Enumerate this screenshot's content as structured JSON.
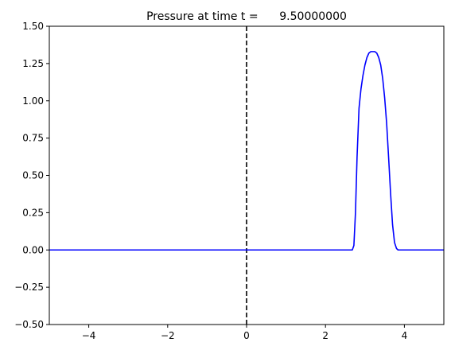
{
  "chart_data": {
    "type": "line",
    "title": "Pressure at time t =      9.50000000",
    "xlabel": "",
    "ylabel": "",
    "xlim": [
      -5,
      5
    ],
    "ylim": [
      -0.5,
      1.5
    ],
    "grid": false,
    "x_ticks": [
      -4,
      -2,
      0,
      2,
      4
    ],
    "x_tick_labels": [
      "−4",
      "−2",
      "0",
      "2",
      "4"
    ],
    "y_ticks": [
      -0.5,
      -0.25,
      0.0,
      0.25,
      0.5,
      0.75,
      1.0,
      1.25,
      1.5
    ],
    "y_tick_labels": [
      "−0.50",
      "−0.25",
      "0.00",
      "0.25",
      "0.50",
      "0.75",
      "1.00",
      "1.25",
      "1.50"
    ],
    "series": [
      {
        "color": "#0000ff",
        "x": [
          -5.0,
          2.68,
          2.72,
          2.76,
          2.8,
          2.85,
          2.9,
          2.95,
          3.0,
          3.05,
          3.1,
          3.15,
          3.2,
          3.25,
          3.3,
          3.35,
          3.4,
          3.45,
          3.5,
          3.55,
          3.6,
          3.65,
          3.7,
          3.75,
          3.8,
          3.84,
          5.0
        ],
        "y": [
          0.0,
          0.0,
          0.03,
          0.25,
          0.62,
          0.95,
          1.08,
          1.17,
          1.24,
          1.29,
          1.32,
          1.33,
          1.33,
          1.33,
          1.32,
          1.29,
          1.24,
          1.15,
          1.02,
          0.85,
          0.62,
          0.38,
          0.17,
          0.05,
          0.01,
          0.0,
          0.0
        ]
      }
    ],
    "vline": {
      "x": 0,
      "style": "dashed",
      "color": "#000000"
    }
  }
}
